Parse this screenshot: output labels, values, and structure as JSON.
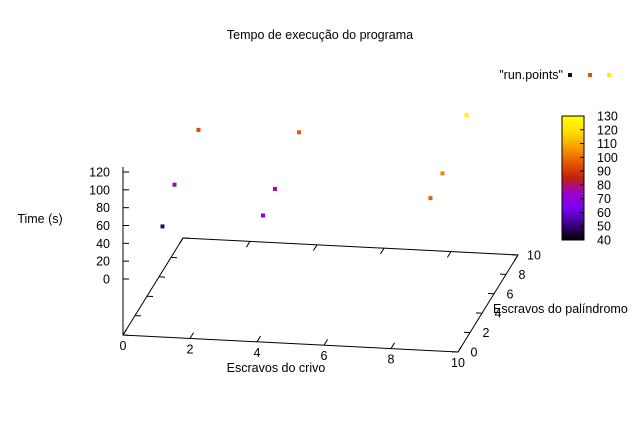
{
  "chart_data": {
    "type": "scatter",
    "title": "Tempo de execução do programa",
    "xlabel": "Escravos do crivo",
    "ylabel": "Escravos do palíndromo",
    "zlabel": "Time (s)",
    "xlim": [
      0,
      10
    ],
    "ylim": [
      0,
      10
    ],
    "zlim": [
      0,
      120
    ],
    "x_ticks": [
      "0",
      "2",
      "4",
      "6",
      "8",
      "10"
    ],
    "y_ticks": [
      "0",
      "2",
      "4",
      "6",
      "8",
      "10"
    ],
    "z_ticks": [
      "0",
      "20",
      "40",
      "60",
      "80",
      "100",
      "120"
    ],
    "legend": {
      "label": "\"run.points\"",
      "position": "top-right"
    },
    "colorbar": {
      "range": [
        40,
        130
      ],
      "ticks": [
        "40",
        "50",
        "60",
        "70",
        "80",
        "90",
        "100",
        "110",
        "120",
        "130"
      ],
      "palette": [
        "#000000",
        "#3b0082",
        "#7800f0",
        "#9a00d0",
        "#c02010",
        "#e65a00",
        "#f7a000",
        "#ffe000",
        "#ffff00"
      ]
    },
    "grid": false,
    "series": [
      {
        "points": [
          {
            "x": 1,
            "y": 1,
            "z": 50
          },
          {
            "x": 1,
            "y": 3,
            "z": 75
          },
          {
            "x": 1,
            "y": 7,
            "z": 93
          },
          {
            "x": 4,
            "y": 1,
            "z": 68
          },
          {
            "x": 4,
            "y": 3,
            "z": 76
          },
          {
            "x": 4,
            "y": 7,
            "z": 96
          },
          {
            "x": 9,
            "y": 1,
            "z": 97
          },
          {
            "x": 9,
            "y": 3,
            "z": 103
          },
          {
            "x": 9,
            "y": 7,
            "z": 125
          }
        ]
      }
    ]
  }
}
